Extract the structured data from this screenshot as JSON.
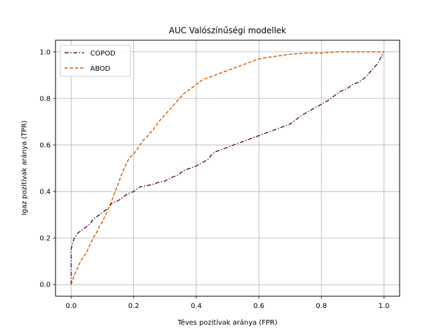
{
  "chart_data": {
    "type": "line",
    "title": "AUC Valószínűségi modellek",
    "xlabel": "Téves pozitívak aránya (FPR)",
    "ylabel": "Igaz pozitívak aránya (TPR)",
    "xlim": [
      -0.05,
      1.05
    ],
    "ylim": [
      -0.05,
      1.05
    ],
    "xticks": [
      0.0,
      0.2,
      0.4,
      0.6,
      0.8,
      1.0
    ],
    "yticks": [
      0.0,
      0.2,
      0.4,
      0.6,
      0.8,
      1.0
    ],
    "xtick_labels": [
      "0.0",
      "0.2",
      "0.4",
      "0.6",
      "0.8",
      "1.0"
    ],
    "ytick_labels": [
      "0.0",
      "0.2",
      "0.4",
      "0.6",
      "0.8",
      "1.0"
    ],
    "grid": true,
    "legend_position": "top-left",
    "series": [
      {
        "name": "COPOD",
        "color": "#5a1a4a",
        "dash": "dashdot",
        "x": [
          0.0,
          0.0,
          0.005,
          0.01,
          0.02,
          0.03,
          0.04,
          0.05,
          0.06,
          0.07,
          0.08,
          0.09,
          0.1,
          0.11,
          0.12,
          0.13,
          0.14,
          0.15,
          0.16,
          0.17,
          0.18,
          0.2,
          0.22,
          0.24,
          0.26,
          0.28,
          0.3,
          0.32,
          0.34,
          0.36,
          0.38,
          0.4,
          0.42,
          0.44,
          0.45,
          0.46,
          0.48,
          0.5,
          0.52,
          0.54,
          0.56,
          0.58,
          0.6,
          0.62,
          0.64,
          0.66,
          0.68,
          0.7,
          0.72,
          0.74,
          0.76,
          0.78,
          0.8,
          0.82,
          0.84,
          0.86,
          0.88,
          0.9,
          0.92,
          0.94,
          0.96,
          0.98,
          1.0
        ],
        "y": [
          0.0,
          0.15,
          0.18,
          0.2,
          0.22,
          0.23,
          0.24,
          0.25,
          0.26,
          0.28,
          0.29,
          0.3,
          0.31,
          0.32,
          0.33,
          0.35,
          0.355,
          0.36,
          0.37,
          0.38,
          0.39,
          0.4,
          0.42,
          0.425,
          0.43,
          0.44,
          0.445,
          0.46,
          0.47,
          0.49,
          0.5,
          0.51,
          0.525,
          0.54,
          0.56,
          0.57,
          0.58,
          0.59,
          0.6,
          0.61,
          0.62,
          0.63,
          0.64,
          0.65,
          0.66,
          0.67,
          0.68,
          0.69,
          0.71,
          0.73,
          0.745,
          0.76,
          0.775,
          0.79,
          0.81,
          0.83,
          0.84,
          0.86,
          0.87,
          0.89,
          0.92,
          0.95,
          1.0
        ]
      },
      {
        "name": "ABOD",
        "color": "#d95f02",
        "dash": "dashed",
        "x": [
          0.0,
          0.005,
          0.01,
          0.02,
          0.03,
          0.04,
          0.05,
          0.06,
          0.07,
          0.08,
          0.09,
          0.1,
          0.11,
          0.12,
          0.13,
          0.14,
          0.15,
          0.16,
          0.17,
          0.18,
          0.19,
          0.2,
          0.21,
          0.22,
          0.23,
          0.24,
          0.25,
          0.26,
          0.27,
          0.28,
          0.3,
          0.32,
          0.34,
          0.36,
          0.38,
          0.4,
          0.42,
          0.44,
          0.46,
          0.48,
          0.5,
          0.52,
          0.54,
          0.56,
          0.58,
          0.6,
          0.62,
          0.65,
          0.7,
          0.75,
          0.8,
          0.85,
          0.9,
          0.95,
          1.0
        ],
        "y": [
          0.0,
          0.02,
          0.04,
          0.07,
          0.1,
          0.12,
          0.14,
          0.17,
          0.2,
          0.22,
          0.25,
          0.27,
          0.3,
          0.33,
          0.36,
          0.4,
          0.43,
          0.47,
          0.5,
          0.53,
          0.55,
          0.56,
          0.58,
          0.6,
          0.62,
          0.63,
          0.65,
          0.66,
          0.68,
          0.7,
          0.73,
          0.76,
          0.79,
          0.82,
          0.84,
          0.86,
          0.88,
          0.89,
          0.9,
          0.91,
          0.92,
          0.93,
          0.94,
          0.95,
          0.96,
          0.97,
          0.975,
          0.98,
          0.99,
          0.995,
          0.995,
          1.0,
          1.0,
          1.0,
          1.0
        ]
      }
    ]
  }
}
